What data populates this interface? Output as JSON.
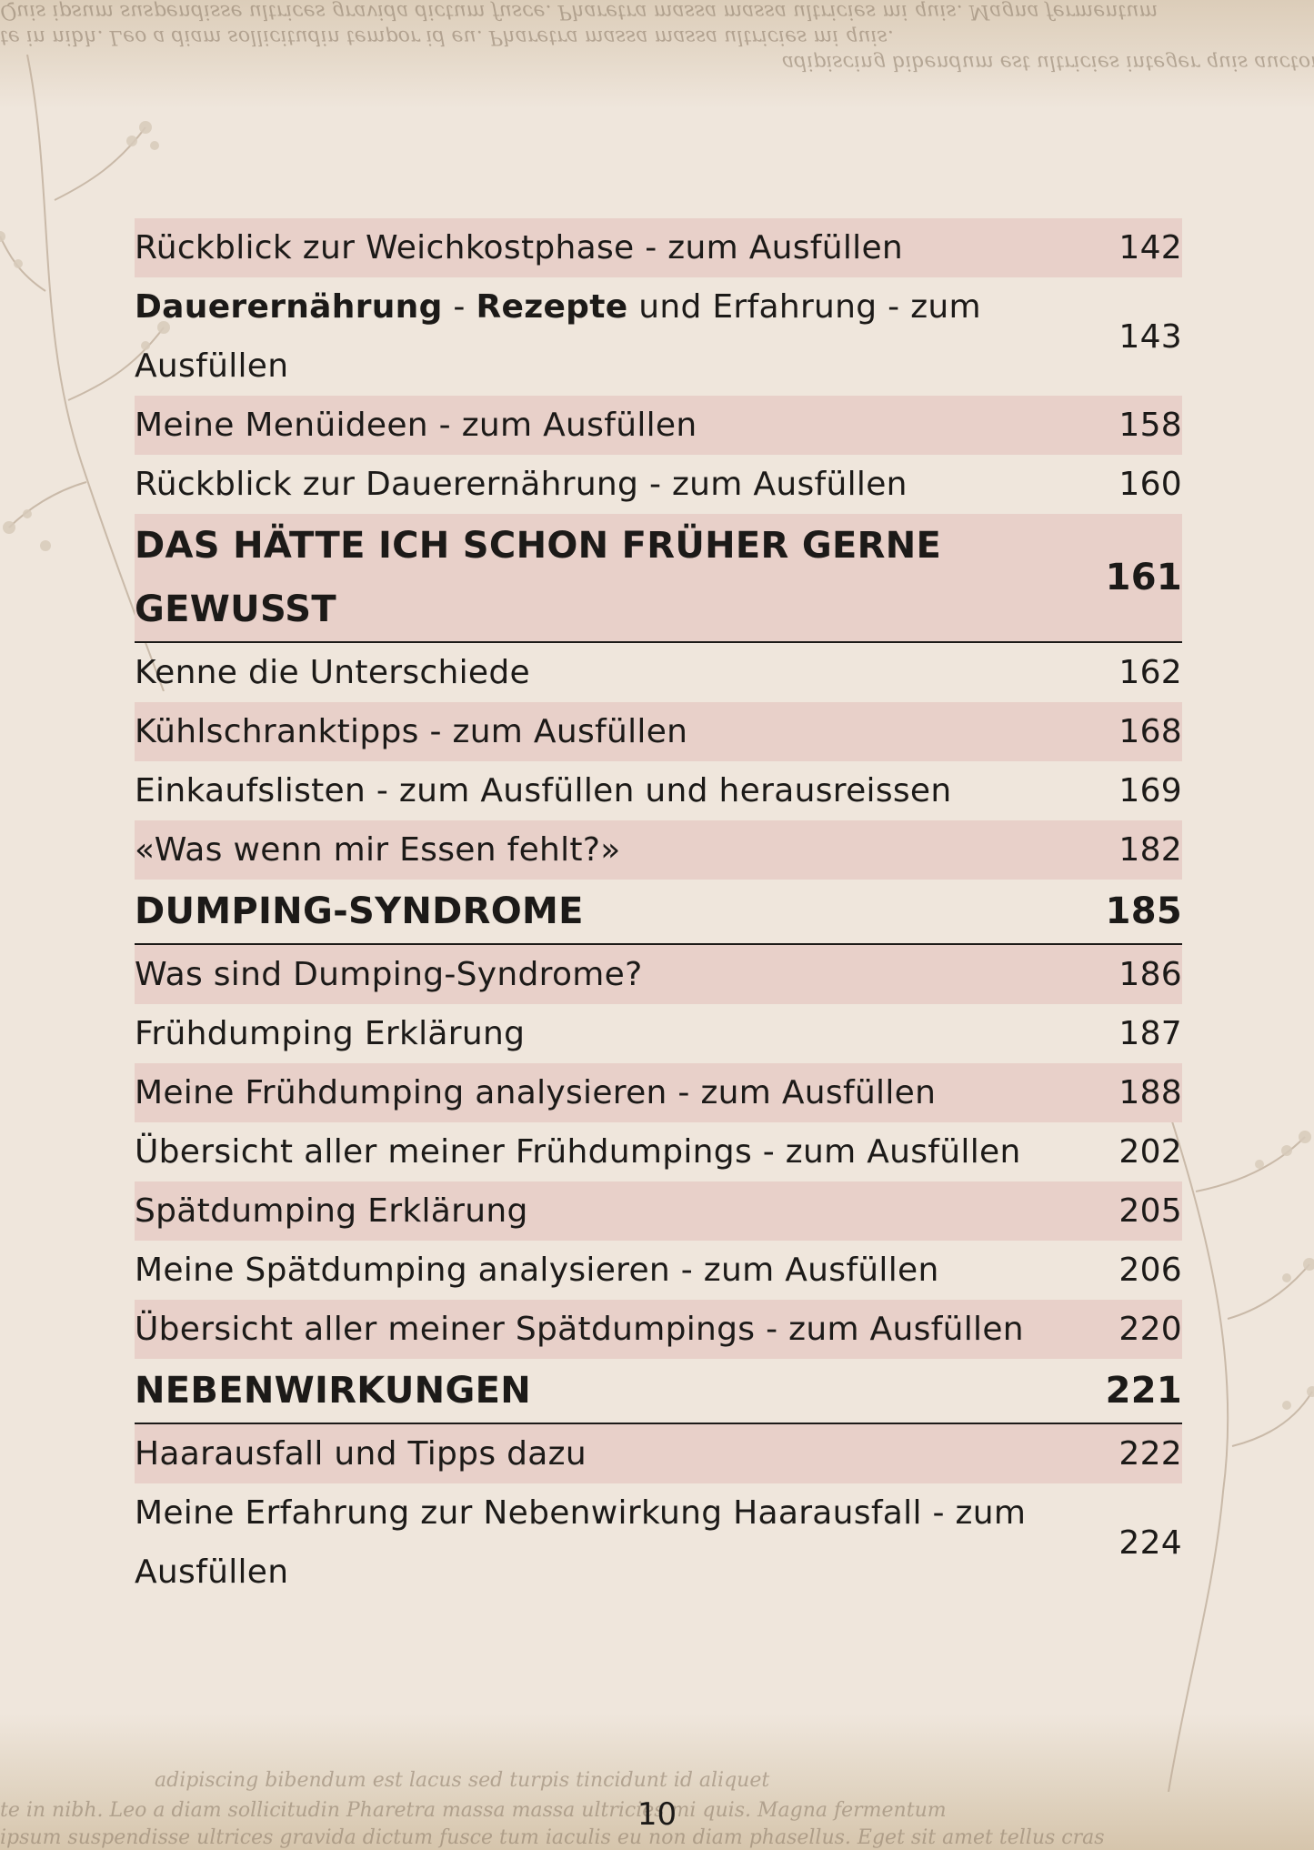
{
  "toc": {
    "rows": [
      {
        "label": "Rückblick zur Weichkostphase - zum Ausfüllen",
        "page": "142",
        "shaded": true
      },
      {
        "label_parts": [
          "Dauerernährung",
          " - ",
          "Rezepte",
          " und Erfahrung - zum Ausfüllen"
        ],
        "page": "143",
        "shaded": false
      },
      {
        "label": "Meine Menüideen - zum Ausfüllen",
        "page": "158",
        "shaded": true
      },
      {
        "label": "Rückblick zur Dauerernährung - zum Ausfüllen",
        "page": "160",
        "shaded": false
      },
      {
        "label": "DAS HÄTTE ICH SCHON FRÜHER GERNE GEWUSST",
        "page": "161",
        "heading": true,
        "shaded": true
      },
      {
        "label": "Kenne die Unterschiede",
        "page": "162",
        "shaded": false
      },
      {
        "label": "Kühlschranktipps - zum Ausfüllen",
        "page": "168",
        "shaded": true
      },
      {
        "label": "Einkaufslisten - zum Ausfüllen und herausreissen",
        "page": "169",
        "shaded": false
      },
      {
        "label": "«Was wenn mir Essen fehlt?»",
        "page": "182",
        "shaded": true
      },
      {
        "label": "DUMPING-SYNDROME",
        "page": "185",
        "heading": true,
        "shaded": false
      },
      {
        "label": "Was sind Dumping-Syndrome?",
        "page": "186",
        "shaded": true
      },
      {
        "label": "Frühdumping Erklärung",
        "page": "187",
        "shaded": false
      },
      {
        "label": "Meine Frühdumping analysieren - zum Ausfüllen",
        "page": "188",
        "shaded": true
      },
      {
        "label": "Übersicht aller meiner Frühdumpings - zum Ausfüllen",
        "page": "202",
        "shaded": false
      },
      {
        "label": "Spätdumping Erklärung",
        "page": "205",
        "shaded": true
      },
      {
        "label": "Meine Spätdumping analysieren - zum Ausfüllen",
        "page": "206",
        "shaded": false
      },
      {
        "label": "Übersicht aller meiner Spätdumpings - zum Ausfüllen",
        "page": "220",
        "shaded": true
      },
      {
        "label": "NEBENWIRKUNGEN",
        "page": "221",
        "heading": true,
        "shaded": false
      },
      {
        "label": "Haarausfall und Tipps dazu",
        "page": "222",
        "shaded": true
      },
      {
        "label": "Meine Erfahrung zur Nebenwirkung Haarausfall - zum Ausfüllen",
        "page": "224",
        "shaded": false
      }
    ]
  },
  "decor": {
    "top_text_1": "Quis ipsum suspendisse ultrices gravida dictum fusce. Pharetra massa massa ultricies mi quis. Magna fermentum",
    "top_text_2": "te in nibh. Leo a diam sollicitudin tempor id eu. Pharetra massa massa ultricies mi quis.",
    "top_text_3": "adipiscing bibendum est ultricies integer quis auctor elit sed vulputate",
    "bottom_text_1": "adipiscing bibendum est          lacus sed turpis tincidunt id aliquet",
    "bottom_text_2": "te in nibh. Leo a diam sollicitudin          Pharetra massa massa ultricies mi quis. Magna fermentum",
    "bottom_text_3": "ipsum suspendisse ultrices gravida dictum fusce     tum iaculis eu non diam phasellus. Eget sit amet tellus cras"
  },
  "footer": {
    "page_number": "10"
  }
}
